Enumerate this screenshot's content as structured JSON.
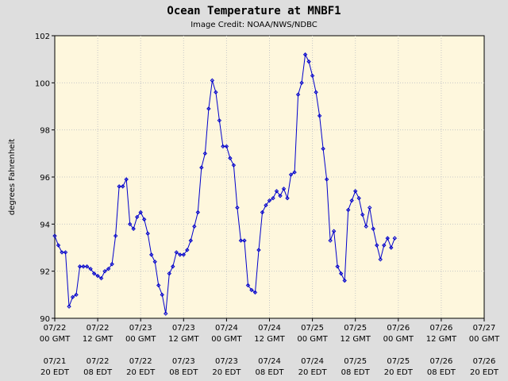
{
  "chart_data": {
    "type": "line",
    "title": "Ocean Temperature at MNBF1",
    "subtitle": "Image Credit: NOAA/NWS/NDBC",
    "xlabel": "",
    "ylabel": "degrees Fahrenheit",
    "ylim": [
      90,
      102
    ],
    "yticks": [
      90,
      92,
      94,
      96,
      98,
      100,
      102
    ],
    "xlim": [
      0,
      120
    ],
    "grid": true,
    "colors": {
      "line": "#0000cc",
      "plot_bg": "#fef7dd",
      "page_bg": "#dedede",
      "grid": "#c8c8c8"
    },
    "xticks": [
      {
        "h": 0,
        "gmt": [
          "07/22",
          "00 GMT"
        ],
        "edt": [
          "07/21",
          "20 EDT"
        ]
      },
      {
        "h": 12,
        "gmt": [
          "07/22",
          "12 GMT"
        ],
        "edt": [
          "07/22",
          "08 EDT"
        ]
      },
      {
        "h": 24,
        "gmt": [
          "07/23",
          "00 GMT"
        ],
        "edt": [
          "07/22",
          "20 EDT"
        ]
      },
      {
        "h": 36,
        "gmt": [
          "07/23",
          "12 GMT"
        ],
        "edt": [
          "07/23",
          "08 EDT"
        ]
      },
      {
        "h": 48,
        "gmt": [
          "07/24",
          "00 GMT"
        ],
        "edt": [
          "07/23",
          "20 EDT"
        ]
      },
      {
        "h": 60,
        "gmt": [
          "07/24",
          "12 GMT"
        ],
        "edt": [
          "07/24",
          "08 EDT"
        ]
      },
      {
        "h": 72,
        "gmt": [
          "07/25",
          "00 GMT"
        ],
        "edt": [
          "07/24",
          "20 EDT"
        ]
      },
      {
        "h": 84,
        "gmt": [
          "07/25",
          "12 GMT"
        ],
        "edt": [
          "07/25",
          "08 EDT"
        ]
      },
      {
        "h": 96,
        "gmt": [
          "07/26",
          "00 GMT"
        ],
        "edt": [
          "07/25",
          "20 EDT"
        ]
      },
      {
        "h": 108,
        "gmt": [
          "07/26",
          "12 GMT"
        ],
        "edt": [
          "07/26",
          "08 EDT"
        ]
      },
      {
        "h": 120,
        "gmt": [
          "07/27",
          "00 GMT"
        ],
        "edt": [
          "07/26",
          "20 EDT"
        ]
      }
    ],
    "series": [
      {
        "x": [
          0,
          1,
          2,
          3,
          4,
          5,
          6,
          7,
          8,
          9,
          10,
          11,
          12,
          13,
          14,
          15,
          16,
          17,
          18,
          19,
          20,
          21,
          22,
          23,
          24,
          25,
          26,
          27,
          28,
          29,
          30,
          31,
          32,
          33,
          34,
          35,
          36,
          37,
          38,
          39,
          40,
          41,
          42,
          43,
          44,
          45,
          46,
          47,
          48,
          49,
          50,
          51,
          52,
          53,
          54,
          55,
          56,
          57,
          58,
          59,
          60,
          61,
          62,
          63,
          64,
          65,
          66,
          67,
          68,
          69,
          70,
          71,
          72,
          73,
          74,
          75,
          76,
          77,
          78,
          79,
          80,
          81,
          82,
          83,
          84,
          85,
          86,
          87,
          88,
          89,
          90,
          91,
          92,
          93,
          94,
          95,
          96
        ],
        "values": [
          93.5,
          93.1,
          92.8,
          92.8,
          90.5,
          90.9,
          91.0,
          92.2,
          92.2,
          92.2,
          92.1,
          91.9,
          91.8,
          91.7,
          92.0,
          92.1,
          92.3,
          93.5,
          95.6,
          95.6,
          95.9,
          94.0,
          93.8,
          94.3,
          94.5,
          94.2,
          93.6,
          92.7,
          92.4,
          91.4,
          91.0,
          90.2,
          91.9,
          92.2,
          92.8,
          92.7,
          92.7,
          92.9,
          93.3,
          93.9,
          94.5,
          96.4,
          97.0,
          98.9,
          100.1,
          99.6,
          98.4,
          97.3,
          97.3,
          96.8,
          96.5,
          94.7,
          93.3,
          93.3,
          91.4,
          91.2,
          91.1,
          92.9,
          94.5,
          94.8,
          95.0,
          95.1,
          95.4,
          95.2,
          95.5,
          95.1,
          96.1,
          96.2,
          99.5,
          100.0,
          101.2,
          100.9,
          100.3,
          99.6,
          98.6,
          97.2,
          95.9,
          93.3,
          93.7,
          92.2,
          91.9,
          91.6,
          94.6,
          95.0,
          95.4,
          95.1,
          94.4,
          93.9,
          94.7,
          93.8,
          93.1,
          92.5,
          93.1,
          93.4,
          93.0,
          93.4,
          null
        ]
      }
    ]
  }
}
